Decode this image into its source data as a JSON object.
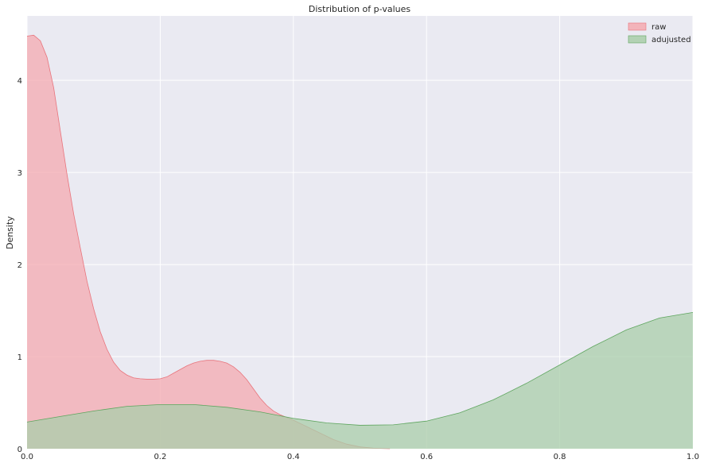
{
  "chart_data": {
    "type": "area",
    "title": "Distribution of p-values",
    "xlabel": "",
    "ylabel": "Density",
    "xlim": [
      0,
      1
    ],
    "ylim": [
      0,
      4.7
    ],
    "xticks": [
      "0.0",
      "0.2",
      "0.4",
      "0.6",
      "0.8",
      "1.0"
    ],
    "yticks": [
      "0",
      "1",
      "2",
      "3",
      "4"
    ],
    "grid": true,
    "legend_position": "top-right",
    "background": "#EAEAF2",
    "series": [
      {
        "name": "raw",
        "color": "#E8747C",
        "fill": "#F4AAB0",
        "points": [
          [
            0,
            4.48
          ],
          [
            0.01,
            4.49
          ],
          [
            0.02,
            4.43
          ],
          [
            0.03,
            4.25
          ],
          [
            0.04,
            3.92
          ],
          [
            0.05,
            3.45
          ],
          [
            0.06,
            2.98
          ],
          [
            0.07,
            2.55
          ],
          [
            0.08,
            2.18
          ],
          [
            0.09,
            1.82
          ],
          [
            0.1,
            1.52
          ],
          [
            0.11,
            1.27
          ],
          [
            0.12,
            1.08
          ],
          [
            0.13,
            0.94
          ],
          [
            0.14,
            0.85
          ],
          [
            0.15,
            0.8
          ],
          [
            0.16,
            0.77
          ],
          [
            0.17,
            0.76
          ],
          [
            0.18,
            0.755
          ],
          [
            0.19,
            0.755
          ],
          [
            0.2,
            0.76
          ],
          [
            0.21,
            0.78
          ],
          [
            0.22,
            0.82
          ],
          [
            0.23,
            0.86
          ],
          [
            0.24,
            0.9
          ],
          [
            0.25,
            0.93
          ],
          [
            0.26,
            0.95
          ],
          [
            0.27,
            0.96
          ],
          [
            0.28,
            0.96
          ],
          [
            0.29,
            0.95
          ],
          [
            0.3,
            0.93
          ],
          [
            0.31,
            0.89
          ],
          [
            0.32,
            0.83
          ],
          [
            0.33,
            0.75
          ],
          [
            0.34,
            0.65
          ],
          [
            0.35,
            0.55
          ],
          [
            0.36,
            0.47
          ],
          [
            0.37,
            0.41
          ],
          [
            0.38,
            0.37
          ],
          [
            0.39,
            0.34
          ],
          [
            0.4,
            0.31
          ],
          [
            0.42,
            0.24
          ],
          [
            0.44,
            0.17
          ],
          [
            0.46,
            0.1
          ],
          [
            0.48,
            0.05
          ],
          [
            0.5,
            0.02
          ],
          [
            0.52,
            0.006
          ],
          [
            0.545,
            0
          ]
        ]
      },
      {
        "name": "adujusted",
        "color": "#5EA55E",
        "fill": "#A9CEA9",
        "points": [
          [
            0,
            0.29
          ],
          [
            0.05,
            0.35
          ],
          [
            0.1,
            0.41
          ],
          [
            0.15,
            0.46
          ],
          [
            0.2,
            0.48
          ],
          [
            0.25,
            0.48
          ],
          [
            0.3,
            0.45
          ],
          [
            0.35,
            0.4
          ],
          [
            0.4,
            0.33
          ],
          [
            0.45,
            0.28
          ],
          [
            0.5,
            0.255
          ],
          [
            0.55,
            0.26
          ],
          [
            0.6,
            0.3
          ],
          [
            0.65,
            0.39
          ],
          [
            0.7,
            0.53
          ],
          [
            0.75,
            0.71
          ],
          [
            0.8,
            0.91
          ],
          [
            0.85,
            1.11
          ],
          [
            0.9,
            1.29
          ],
          [
            0.95,
            1.42
          ],
          [
            1.0,
            1.48
          ]
        ]
      }
    ]
  }
}
